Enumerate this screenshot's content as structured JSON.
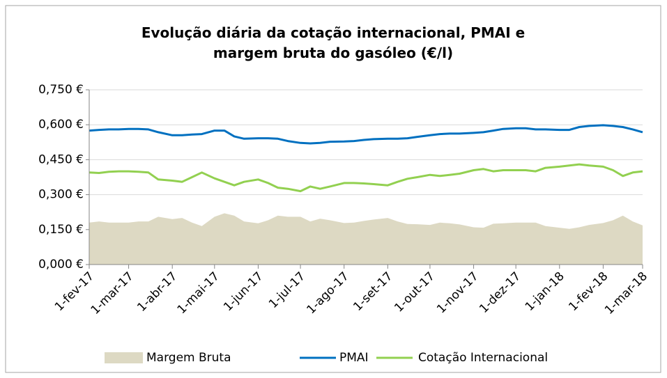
{
  "chart_data": {
    "type": "line",
    "title": "Evolução diária da cotação internacional, PMAI e margem bruta do gasóleo (€/l)",
    "x": [
      "2017-02-01",
      "2017-02-08",
      "2017-02-15",
      "2017-02-22",
      "2017-03-01",
      "2017-03-08",
      "2017-03-15",
      "2017-03-22",
      "2017-04-01",
      "2017-04-08",
      "2017-04-15",
      "2017-04-22",
      "2017-05-01",
      "2017-05-08",
      "2017-05-15",
      "2017-05-22",
      "2017-06-01",
      "2017-06-08",
      "2017-06-15",
      "2017-06-22",
      "2017-07-01",
      "2017-07-08",
      "2017-07-15",
      "2017-07-22",
      "2017-08-01",
      "2017-08-08",
      "2017-08-15",
      "2017-08-22",
      "2017-09-01",
      "2017-09-08",
      "2017-09-15",
      "2017-09-22",
      "2017-10-01",
      "2017-10-08",
      "2017-10-15",
      "2017-10-22",
      "2017-11-01",
      "2017-11-08",
      "2017-11-15",
      "2017-11-22",
      "2017-12-01",
      "2017-12-08",
      "2017-12-15",
      "2017-12-22",
      "2018-01-01",
      "2018-01-08",
      "2018-01-15",
      "2018-01-22",
      "2018-02-01",
      "2018-02-08",
      "2018-02-15",
      "2018-02-22",
      "2018-03-01"
    ],
    "series": [
      {
        "name": "Margem Bruta",
        "type": "area",
        "color": "#ddd9c3",
        "values": [
          0.18,
          0.185,
          0.18,
          0.18,
          0.18,
          0.185,
          0.185,
          0.205,
          0.195,
          0.2,
          0.18,
          0.165,
          0.205,
          0.22,
          0.21,
          0.185,
          0.177,
          0.19,
          0.21,
          0.205,
          0.205,
          0.185,
          0.197,
          0.19,
          0.178,
          0.18,
          0.187,
          0.193,
          0.2,
          0.185,
          0.174,
          0.173,
          0.17,
          0.18,
          0.177,
          0.172,
          0.16,
          0.158,
          0.175,
          0.177,
          0.18,
          0.18,
          0.18,
          0.165,
          0.158,
          0.153,
          0.16,
          0.17,
          0.178,
          0.19,
          0.21,
          0.185,
          0.168
        ]
      },
      {
        "name": "PMAI",
        "type": "line",
        "color": "#0070c0",
        "values": [
          0.575,
          0.578,
          0.58,
          0.58,
          0.582,
          0.582,
          0.58,
          0.568,
          0.555,
          0.555,
          0.558,
          0.56,
          0.575,
          0.575,
          0.55,
          0.54,
          0.542,
          0.542,
          0.54,
          0.53,
          0.522,
          0.52,
          0.522,
          0.527,
          0.528,
          0.53,
          0.535,
          0.538,
          0.54,
          0.54,
          0.542,
          0.548,
          0.555,
          0.56,
          0.562,
          0.562,
          0.565,
          0.568,
          0.575,
          0.582,
          0.585,
          0.585,
          0.58,
          0.58,
          0.578,
          0.578,
          0.59,
          0.595,
          0.598,
          0.595,
          0.59,
          0.58,
          0.568
        ]
      },
      {
        "name": "Cotação Internacional",
        "type": "line",
        "color": "#92d050",
        "values": [
          0.395,
          0.393,
          0.398,
          0.4,
          0.4,
          0.398,
          0.395,
          0.365,
          0.36,
          0.355,
          0.375,
          0.395,
          0.37,
          0.355,
          0.34,
          0.355,
          0.365,
          0.35,
          0.33,
          0.325,
          0.315,
          0.335,
          0.325,
          0.335,
          0.35,
          0.35,
          0.348,
          0.345,
          0.34,
          0.355,
          0.368,
          0.375,
          0.385,
          0.38,
          0.385,
          0.39,
          0.405,
          0.41,
          0.4,
          0.405,
          0.405,
          0.405,
          0.4,
          0.415,
          0.42,
          0.425,
          0.43,
          0.425,
          0.42,
          0.405,
          0.38,
          0.395,
          0.4
        ]
      }
    ],
    "xlim": [
      "2017-02-01",
      "2018-03-01"
    ],
    "xticks": [
      {
        "value": "2017-02-01",
        "label": "1-fev-17"
      },
      {
        "value": "2017-03-01",
        "label": "1-mar-17"
      },
      {
        "value": "2017-04-01",
        "label": "1-abr-17"
      },
      {
        "value": "2017-05-01",
        "label": "1-mai-17"
      },
      {
        "value": "2017-06-01",
        "label": "1-jun-17"
      },
      {
        "value": "2017-07-01",
        "label": "1-jul-17"
      },
      {
        "value": "2017-08-01",
        "label": "1-ago-17"
      },
      {
        "value": "2017-09-01",
        "label": "1-set-17"
      },
      {
        "value": "2017-10-01",
        "label": "1-out-17"
      },
      {
        "value": "2017-11-01",
        "label": "1-nov-17"
      },
      {
        "value": "2017-12-01",
        "label": "1-dez-17"
      },
      {
        "value": "2018-01-01",
        "label": "1-jan-18"
      },
      {
        "value": "2018-02-01",
        "label": "1-fev-18"
      },
      {
        "value": "2018-03-01",
        "label": "1-mar-18"
      }
    ],
    "ylim": [
      0,
      0.75
    ],
    "yticks": [
      {
        "value": 0,
        "label": "0,000 €"
      },
      {
        "value": 0.15,
        "label": "0,150 €"
      },
      {
        "value": 0.3,
        "label": "0,300 €"
      },
      {
        "value": 0.45,
        "label": "0,450 €"
      },
      {
        "value": 0.6,
        "label": "0,600 €"
      },
      {
        "value": 0.75,
        "label": "0,750 €"
      }
    ],
    "grid": true,
    "legend": "bottom"
  }
}
